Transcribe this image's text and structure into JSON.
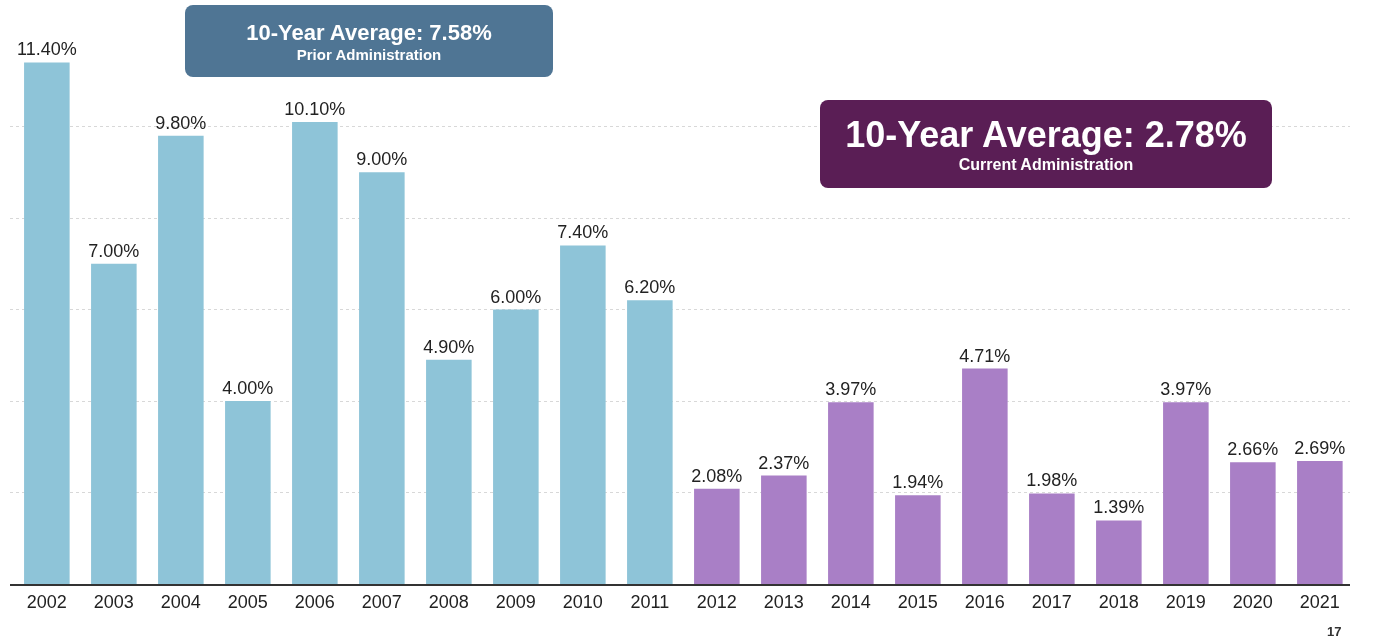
{
  "chart_data": {
    "type": "bar",
    "categories": [
      "2002",
      "2003",
      "2004",
      "2005",
      "2006",
      "2007",
      "2008",
      "2009",
      "2010",
      "2011",
      "2012",
      "2013",
      "2014",
      "2015",
      "2016",
      "2017",
      "2018",
      "2019",
      "2020",
      "2021"
    ],
    "values": [
      11.4,
      7.0,
      9.8,
      4.0,
      10.1,
      9.0,
      4.9,
      6.0,
      7.4,
      6.2,
      2.08,
      2.37,
      3.97,
      1.94,
      4.71,
      1.98,
      1.39,
      3.97,
      2.66,
      2.69
    ],
    "value_labels": [
      "11.40%",
      "7.00%",
      "9.80%",
      "4.00%",
      "10.10%",
      "9.00%",
      "4.90%",
      "6.00%",
      "7.40%",
      "6.20%",
      "2.08%",
      "2.37%",
      "3.97%",
      "1.94%",
      "4.71%",
      "1.98%",
      "1.39%",
      "3.97%",
      "2.66%",
      "2.69%"
    ],
    "colors": [
      "#8ec4d8",
      "#8ec4d8",
      "#8ec4d8",
      "#8ec4d8",
      "#8ec4d8",
      "#8ec4d8",
      "#8ec4d8",
      "#8ec4d8",
      "#8ec4d8",
      "#8ec4d8",
      "#a97fc6",
      "#a97fc6",
      "#a97fc6",
      "#a97fc6",
      "#a97fc6",
      "#a97fc6",
      "#a97fc6",
      "#a97fc6",
      "#a97fc6",
      "#a97fc6"
    ],
    "tick_labels": "x",
    "grid": "y",
    "legend": false,
    "annotations": [
      "10-Year Average: 7.58%",
      "Prior Administration",
      "10-Year Average: 2.78%",
      "Current Administration",
      "17"
    ]
  }
}
